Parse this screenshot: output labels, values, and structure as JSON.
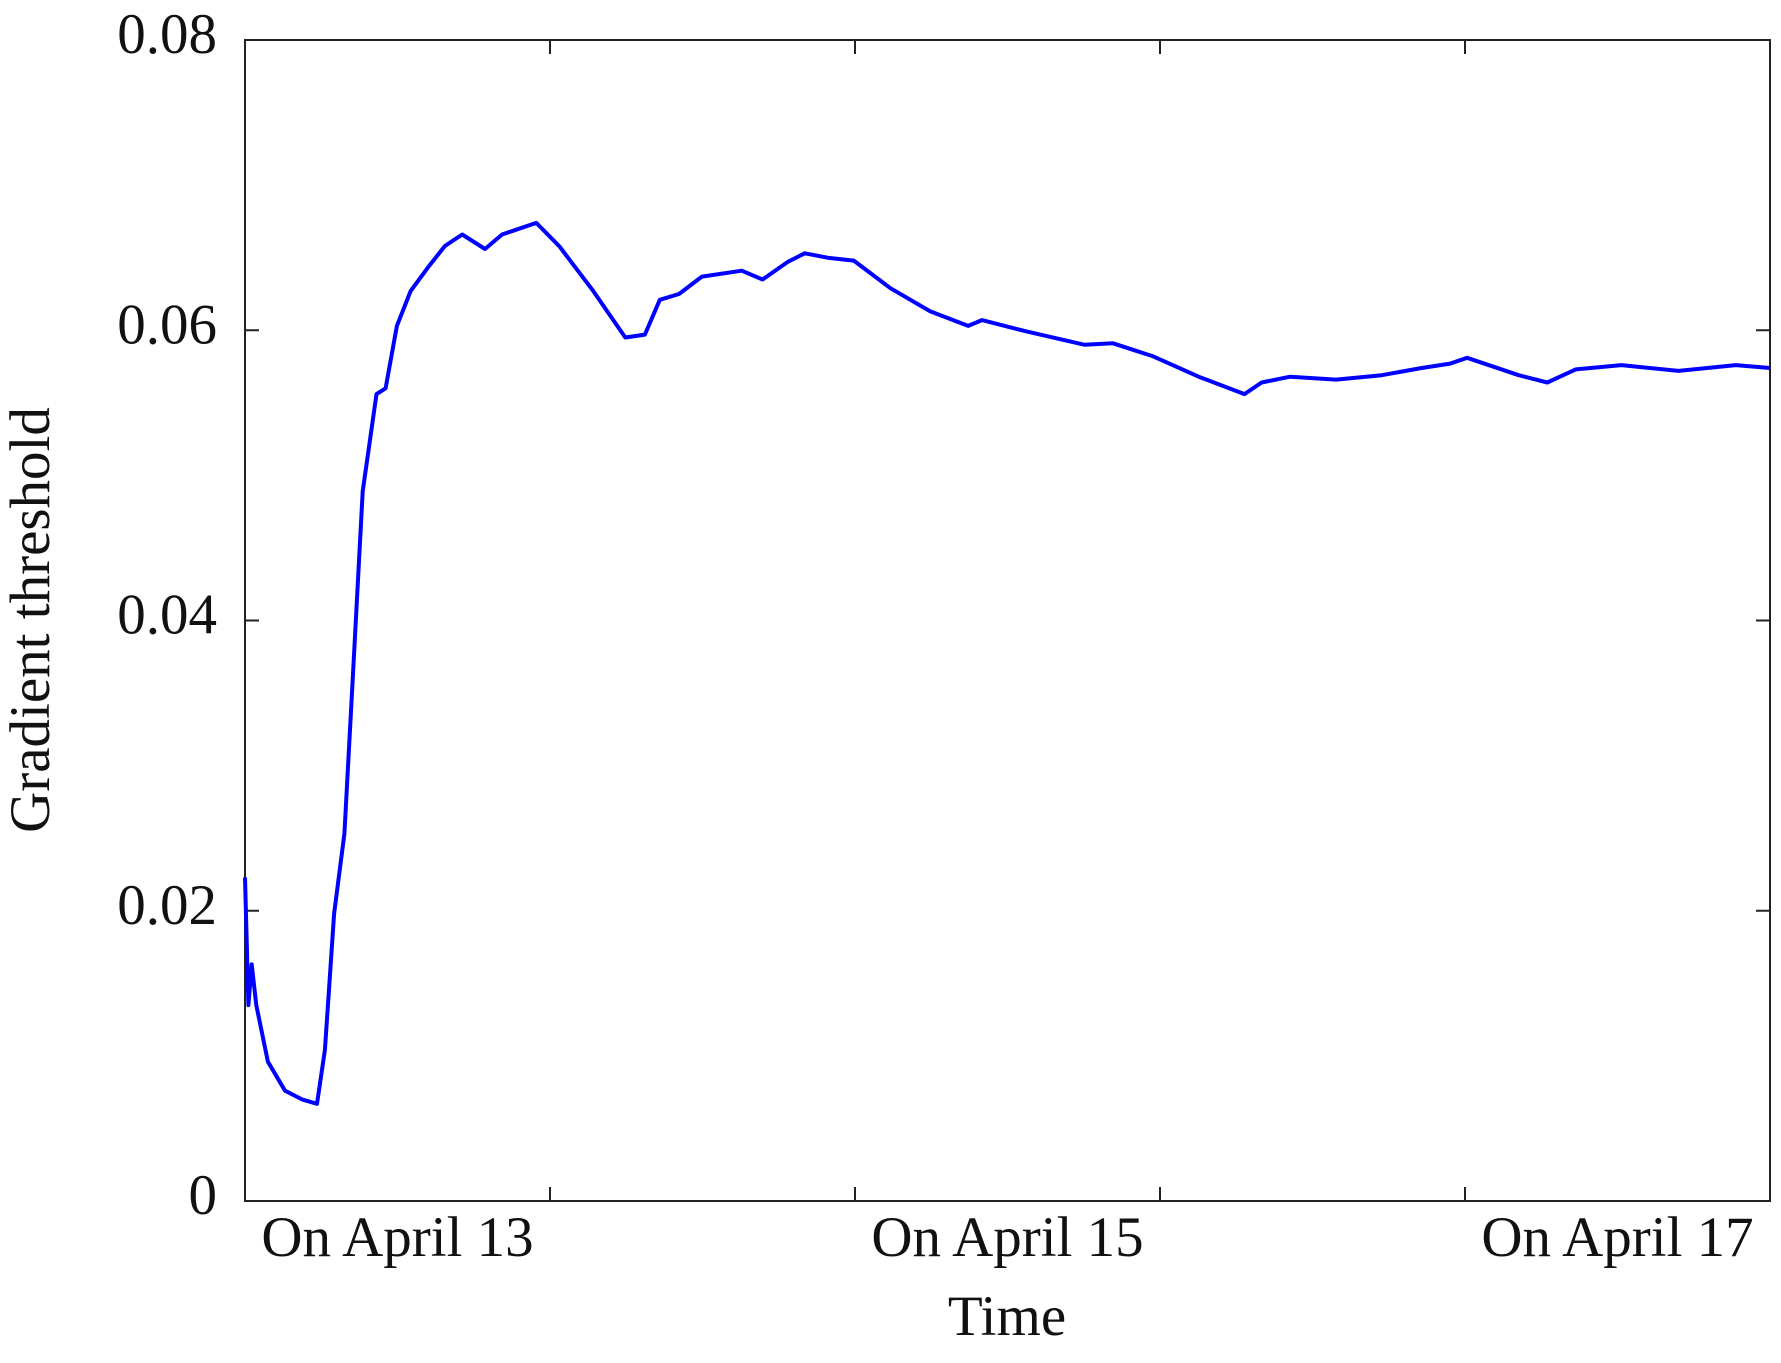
{
  "chart_data": {
    "type": "line",
    "xlabel": "Time",
    "ylabel": "Gradient threshold",
    "xlim": [
      0,
      5
    ],
    "ylim": [
      0,
      0.08
    ],
    "xticks": [
      {
        "value": 0.5,
        "label": "On April 13"
      },
      {
        "value": 2.5,
        "label": "On April 15"
      },
      {
        "value": 4.5,
        "label": "On April 17"
      }
    ],
    "xtick_marks": [
      1,
      2,
      3,
      4
    ],
    "yticks": [
      0,
      0.02,
      0.04,
      0.06,
      0.08
    ],
    "grid": false,
    "series": [
      {
        "color": "#0000ff",
        "x": [
          0,
          0.011,
          0.022,
          0.037,
          0.075,
          0.131,
          0.187,
          0.236,
          0.262,
          0.292,
          0.326,
          0.356,
          0.386,
          0.431,
          0.461,
          0.498,
          0.543,
          0.599,
          0.655,
          0.712,
          0.787,
          0.843,
          0.899,
          0.955,
          1.03,
          1.142,
          1.247,
          1.311,
          1.36,
          1.423,
          1.498,
          1.629,
          1.697,
          1.779,
          1.835,
          1.91,
          1.996,
          2.116,
          2.247,
          2.371,
          2.416,
          2.566,
          2.753,
          2.846,
          2.978,
          3.127,
          3.277,
          3.333,
          3.427,
          3.577,
          3.727,
          3.858,
          3.951,
          4.007,
          4.176,
          4.27,
          4.363,
          4.513,
          4.7,
          4.888,
          5.0
        ],
        "values": [
          0.0223,
          0.0135,
          0.0163,
          0.0135,
          0.0096,
          0.0076,
          0.007,
          0.0067,
          0.0104,
          0.0198,
          0.0253,
          0.0371,
          0.0489,
          0.0556,
          0.056,
          0.0603,
          0.0627,
          0.0643,
          0.0658,
          0.0666,
          0.0656,
          0.0666,
          0.067,
          0.0674,
          0.0658,
          0.0627,
          0.0595,
          0.0597,
          0.0621,
          0.0625,
          0.0637,
          0.0641,
          0.0635,
          0.0647,
          0.0653,
          0.065,
          0.0648,
          0.0629,
          0.0613,
          0.0603,
          0.0607,
          0.0599,
          0.059,
          0.0591,
          0.0582,
          0.0568,
          0.0556,
          0.0564,
          0.0568,
          0.0566,
          0.0569,
          0.0574,
          0.0577,
          0.0581,
          0.0569,
          0.0564,
          0.0573,
          0.0576,
          0.0572,
          0.0576,
          0.0574
        ]
      }
    ]
  }
}
